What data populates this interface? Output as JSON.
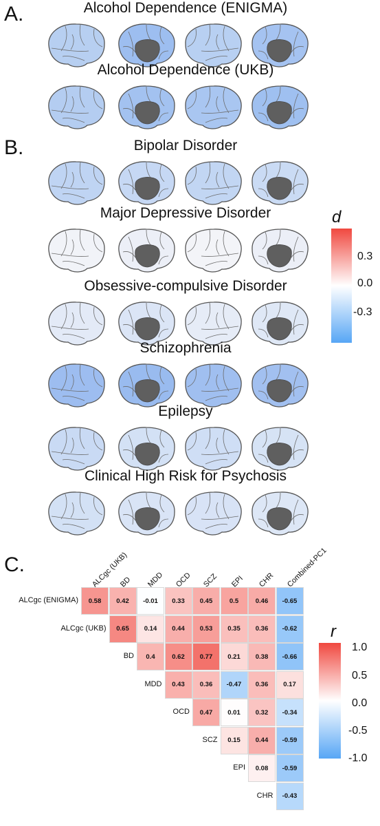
{
  "panels": {
    "a": "A.",
    "b": "B.",
    "c": "C."
  },
  "brain_rows": [
    {
      "title": "Alcohol Dependence (ENIGMA)",
      "fills": [
        "#b7cff1",
        "#9dbef0",
        "#b8d0f2",
        "#a5c3f1"
      ]
    },
    {
      "title": "Alcohol Dependence (UKB)",
      "fills": [
        "#b4cdf1",
        "#a3c2f0",
        "#a9c6f1",
        "#9fc0f0"
      ]
    },
    {
      "title": "Bipolar Disorder",
      "fills": [
        "#bfd4f3",
        "#c6d8f4",
        "#c2d6f3",
        "#cadbf4"
      ]
    },
    {
      "title": "Major Depressive Disorder",
      "fills": [
        "#f1f3f8",
        "#eceff7",
        "#f3f4f8",
        "#eceff7"
      ]
    },
    {
      "title": "Obsessive-compulsive Disorder",
      "fills": [
        "#e3eaf7",
        "#dbe5f6",
        "#e6ecf7",
        "#dfe8f6"
      ]
    },
    {
      "title": "Schizophrenia",
      "fills": [
        "#9dbdf0",
        "#99bbef",
        "#a0bff0",
        "#a2c0f0"
      ]
    },
    {
      "title": "Epilepsy",
      "fills": [
        "#c9daf4",
        "#d3e1f5",
        "#cfdef5",
        "#d6e3f5"
      ]
    },
    {
      "title": "Clinical High Risk for Psychosis",
      "fills": [
        "#d3e1f5",
        "#d9e4f6",
        "#d8e3f6",
        "#dde7f6"
      ]
    }
  ],
  "legend_d": {
    "title": "d",
    "ticks": [
      "0.3",
      "0.0",
      "-0.3"
    ],
    "colors": [
      "#f0483f",
      "#ffffff",
      "#57a6f5"
    ]
  },
  "legend_r": {
    "title": "r",
    "ticks": [
      "1.0",
      "0.5",
      "0.0",
      "-0.5",
      "-1.0"
    ],
    "colors": [
      "#f0483f",
      "#ffffff",
      "#57a6f5"
    ]
  },
  "chart_data": {
    "type": "heatmap",
    "columns": [
      "ALCgc (UKB)",
      "BD",
      "MDD",
      "OCD",
      "SCZ",
      "EPI",
      "CHR",
      "Combined-PC1"
    ],
    "rows": [
      "ALCgc (ENIGMA)",
      "ALCgc (UKB)",
      "BD",
      "MDD",
      "OCD",
      "SCZ",
      "EPI",
      "CHR"
    ],
    "values": [
      [
        0.58,
        0.42,
        -0.01,
        0.33,
        0.45,
        0.5,
        0.46,
        -0.65
      ],
      [
        null,
        0.65,
        0.14,
        0.44,
        0.53,
        0.35,
        0.36,
        -0.62
      ],
      [
        null,
        null,
        0.4,
        0.62,
        0.77,
        0.21,
        0.38,
        -0.66
      ],
      [
        null,
        null,
        null,
        0.43,
        0.36,
        -0.47,
        0.36,
        0.17
      ],
      [
        null,
        null,
        null,
        null,
        0.47,
        0.01,
        0.32,
        -0.34
      ],
      [
        null,
        null,
        null,
        null,
        null,
        0.15,
        0.44,
        -0.59
      ],
      [
        null,
        null,
        null,
        null,
        null,
        null,
        0.08,
        -0.59
      ],
      [
        null,
        null,
        null,
        null,
        null,
        null,
        null,
        -0.43
      ]
    ],
    "color_range": [
      -1.0,
      1.0
    ]
  }
}
